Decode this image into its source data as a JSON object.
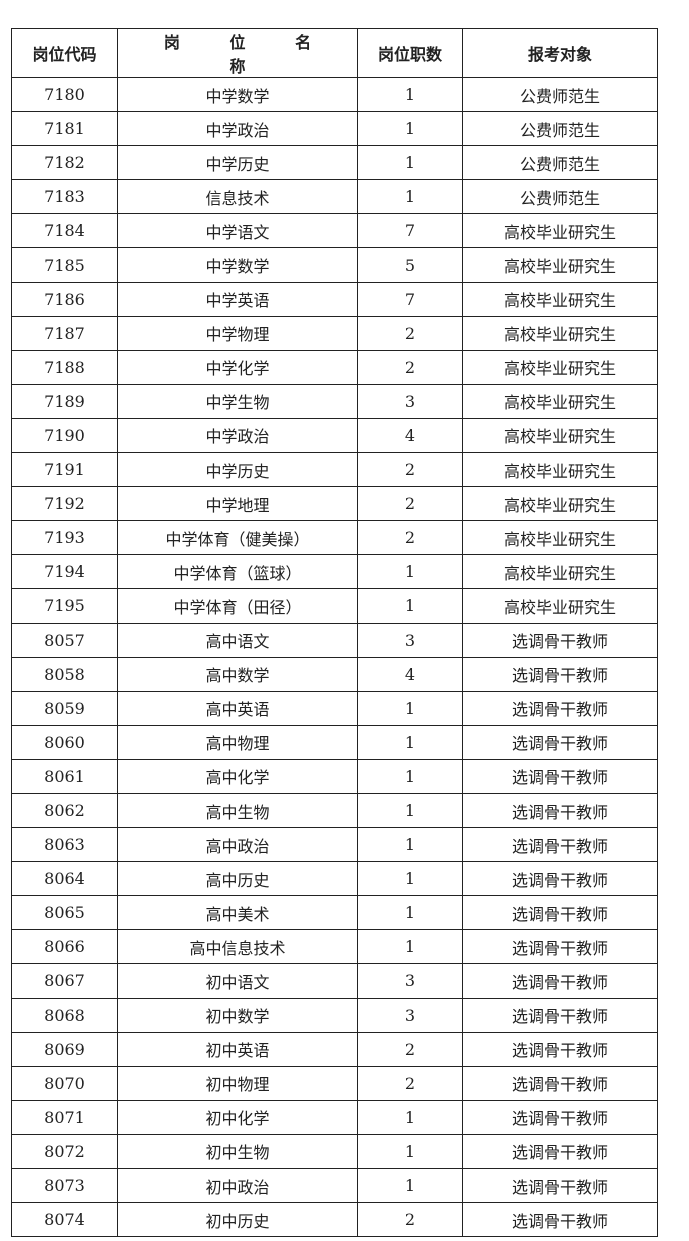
{
  "headers": {
    "code": "岗位代码",
    "name": "岗 位 名 称",
    "count": "岗位职数",
    "target": "报考对象"
  },
  "rows": [
    {
      "code": "7180",
      "name": "中学数学",
      "count": "1",
      "target": "公费师范生"
    },
    {
      "code": "7181",
      "name": "中学政治",
      "count": "1",
      "target": "公费师范生"
    },
    {
      "code": "7182",
      "name": "中学历史",
      "count": "1",
      "target": "公费师范生"
    },
    {
      "code": "7183",
      "name": "信息技术",
      "count": "1",
      "target": "公费师范生"
    },
    {
      "code": "7184",
      "name": "中学语文",
      "count": "7",
      "target": "高校毕业研究生"
    },
    {
      "code": "7185",
      "name": "中学数学",
      "count": "5",
      "target": "高校毕业研究生"
    },
    {
      "code": "7186",
      "name": "中学英语",
      "count": "7",
      "target": "高校毕业研究生"
    },
    {
      "code": "7187",
      "name": "中学物理",
      "count": "2",
      "target": "高校毕业研究生"
    },
    {
      "code": "7188",
      "name": "中学化学",
      "count": "2",
      "target": "高校毕业研究生"
    },
    {
      "code": "7189",
      "name": "中学生物",
      "count": "3",
      "target": "高校毕业研究生"
    },
    {
      "code": "7190",
      "name": "中学政治",
      "count": "4",
      "target": "高校毕业研究生"
    },
    {
      "code": "7191",
      "name": "中学历史",
      "count": "2",
      "target": "高校毕业研究生"
    },
    {
      "code": "7192",
      "name": "中学地理",
      "count": "2",
      "target": "高校毕业研究生"
    },
    {
      "code": "7193",
      "name": "中学体育（健美操）",
      "count": "2",
      "target": "高校毕业研究生"
    },
    {
      "code": "7194",
      "name": "中学体育（篮球）",
      "count": "1",
      "target": "高校毕业研究生"
    },
    {
      "code": "7195",
      "name": "中学体育（田径）",
      "count": "1",
      "target": "高校毕业研究生"
    },
    {
      "code": "8057",
      "name": "高中语文",
      "count": "3",
      "target": "选调骨干教师"
    },
    {
      "code": "8058",
      "name": "高中数学",
      "count": "4",
      "target": "选调骨干教师"
    },
    {
      "code": "8059",
      "name": "高中英语",
      "count": "1",
      "target": "选调骨干教师"
    },
    {
      "code": "8060",
      "name": "高中物理",
      "count": "1",
      "target": "选调骨干教师"
    },
    {
      "code": "8061",
      "name": "高中化学",
      "count": "1",
      "target": "选调骨干教师"
    },
    {
      "code": "8062",
      "name": "高中生物",
      "count": "1",
      "target": "选调骨干教师"
    },
    {
      "code": "8063",
      "name": "高中政治",
      "count": "1",
      "target": "选调骨干教师"
    },
    {
      "code": "8064",
      "name": "高中历史",
      "count": "1",
      "target": "选调骨干教师"
    },
    {
      "code": "8065",
      "name": "高中美术",
      "count": "1",
      "target": "选调骨干教师"
    },
    {
      "code": "8066",
      "name": "高中信息技术",
      "count": "1",
      "target": "选调骨干教师"
    },
    {
      "code": "8067",
      "name": "初中语文",
      "count": "3",
      "target": "选调骨干教师"
    },
    {
      "code": "8068",
      "name": "初中数学",
      "count": "3",
      "target": "选调骨干教师"
    },
    {
      "code": "8069",
      "name": "初中英语",
      "count": "2",
      "target": "选调骨干教师"
    },
    {
      "code": "8070",
      "name": "初中物理",
      "count": "2",
      "target": "选调骨干教师"
    },
    {
      "code": "8071",
      "name": "初中化学",
      "count": "1",
      "target": "选调骨干教师"
    },
    {
      "code": "8072",
      "name": "初中生物",
      "count": "1",
      "target": "选调骨干教师"
    },
    {
      "code": "8073",
      "name": "初中政治",
      "count": "1",
      "target": "选调骨干教师"
    },
    {
      "code": "8074",
      "name": "初中历史",
      "count": "2",
      "target": "选调骨干教师"
    }
  ]
}
